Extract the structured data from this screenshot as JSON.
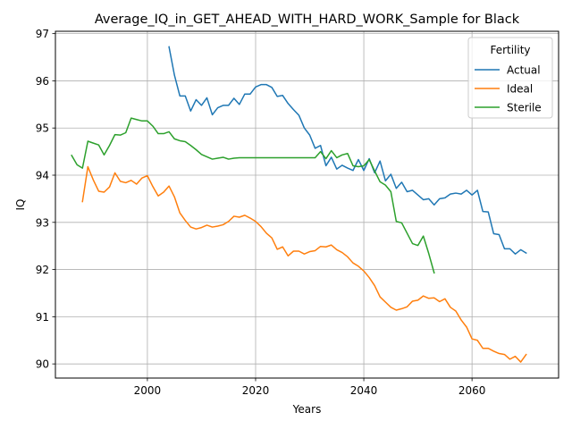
{
  "chart_data": {
    "type": "line",
    "title": "Average_IQ_in_GET_AHEAD_WITH_HARD_WORK_Sample for Black",
    "xlabel": "Years",
    "ylabel": "IQ",
    "xlim": [
      1983,
      2076
    ],
    "ylim": [
      89.7,
      97.05
    ],
    "xticks": [
      2000,
      2020,
      2040,
      2060
    ],
    "yticks": [
      90,
      91,
      92,
      93,
      94,
      95,
      96,
      97
    ],
    "grid": true,
    "legend": {
      "title": "Fertility",
      "position": "top-right"
    },
    "series": [
      {
        "name": "Actual",
        "color": "#1f77b4",
        "x": [
          2004,
          2005,
          2006,
          2007,
          2008,
          2009,
          2010,
          2011,
          2012,
          2013,
          2014,
          2015,
          2016,
          2017,
          2018,
          2019,
          2020,
          2021,
          2022,
          2023,
          2024,
          2025,
          2026,
          2027,
          2028,
          2029,
          2030,
          2031,
          2032,
          2033,
          2034,
          2035,
          2036,
          2037,
          2038,
          2039,
          2040,
          2041,
          2042,
          2043,
          2044,
          2045,
          2046,
          2047,
          2048,
          2049,
          2050,
          2051,
          2052,
          2053,
          2054,
          2055,
          2056,
          2057,
          2058,
          2059,
          2060,
          2061,
          2062,
          2063,
          2064,
          2065,
          2066,
          2067,
          2068,
          2069,
          2070
        ],
        "y": [
          96.72,
          96.12,
          95.68,
          95.68,
          95.36,
          95.6,
          95.48,
          95.64,
          95.28,
          95.43,
          95.48,
          95.48,
          95.63,
          95.5,
          95.72,
          95.72,
          95.87,
          95.92,
          95.92,
          95.86,
          95.67,
          95.69,
          95.52,
          95.39,
          95.27,
          95.0,
          94.85,
          94.57,
          94.63,
          94.2,
          94.38,
          94.13,
          94.21,
          94.15,
          94.1,
          94.33,
          94.1,
          94.35,
          94.05,
          94.3,
          93.88,
          94.02,
          93.72,
          93.85,
          93.65,
          93.68,
          93.58,
          93.48,
          93.5,
          93.37,
          93.5,
          93.52,
          93.6,
          93.62,
          93.6,
          93.68,
          93.58,
          93.68,
          93.23,
          93.22,
          92.76,
          92.74,
          92.44,
          92.44,
          92.33,
          92.42,
          92.35
        ]
      },
      {
        "name": "Ideal",
        "color": "#ff7f0e",
        "x": [
          1988,
          1989,
          1990,
          1991,
          1992,
          1993,
          1994,
          1995,
          1996,
          1997,
          1998,
          1999,
          2000,
          2001,
          2002,
          2003,
          2004,
          2005,
          2006,
          2007,
          2008,
          2009,
          2010,
          2011,
          2012,
          2013,
          2014,
          2015,
          2016,
          2017,
          2018,
          2019,
          2020,
          2021,
          2022,
          2023,
          2024,
          2025,
          2026,
          2027,
          2028,
          2029,
          2030,
          2031,
          2032,
          2033,
          2034,
          2035,
          2036,
          2037,
          2038,
          2039,
          2040,
          2041,
          2042,
          2043,
          2044,
          2045,
          2046,
          2047,
          2048,
          2049,
          2050,
          2051,
          2052,
          2053,
          2054,
          2055,
          2056,
          2057,
          2058,
          2059,
          2060,
          2061,
          2062,
          2063,
          2064,
          2065,
          2066,
          2067,
          2068,
          2069,
          2070
        ],
        "y": [
          93.44,
          94.18,
          93.9,
          93.66,
          93.64,
          93.75,
          94.05,
          93.87,
          93.84,
          93.89,
          93.81,
          93.94,
          93.99,
          93.76,
          93.56,
          93.64,
          93.77,
          93.54,
          93.2,
          93.04,
          92.9,
          92.86,
          92.89,
          92.94,
          92.9,
          92.92,
          92.95,
          93.02,
          93.13,
          93.11,
          93.15,
          93.09,
          93.02,
          92.91,
          92.77,
          92.67,
          92.43,
          92.48,
          92.29,
          92.39,
          92.39,
          92.33,
          92.38,
          92.4,
          92.49,
          92.48,
          92.52,
          92.42,
          92.36,
          92.27,
          92.14,
          92.07,
          91.97,
          91.83,
          91.66,
          91.42,
          91.31,
          91.2,
          91.14,
          91.17,
          91.21,
          91.33,
          91.35,
          91.44,
          91.39,
          91.4,
          91.32,
          91.38,
          91.2,
          91.12,
          90.93,
          90.78,
          90.53,
          90.5,
          90.33,
          90.33,
          90.27,
          90.22,
          90.2,
          90.1,
          90.16,
          90.04,
          90.2
        ]
      },
      {
        "name": "Sterile",
        "color": "#2ca02c",
        "x": [
          1986,
          1987,
          1988,
          1989,
          1990,
          1991,
          1992,
          1993,
          1994,
          1995,
          1996,
          1997,
          1998,
          1999,
          2000,
          2001,
          2002,
          2003,
          2004,
          2005,
          2006,
          2007,
          2008,
          2009,
          2010,
          2011,
          2012,
          2013,
          2014,
          2015,
          2016,
          2017,
          2018,
          2019,
          2020,
          2021,
          2022,
          2023,
          2024,
          2025,
          2026,
          2027,
          2028,
          2029,
          2030,
          2031,
          2032,
          2033,
          2034,
          2035,
          2036,
          2037,
          2038,
          2039,
          2040,
          2041,
          2042,
          2043,
          2044,
          2045,
          2046,
          2047,
          2048,
          2049,
          2050,
          2051,
          2052,
          2053
        ],
        "y": [
          94.42,
          94.22,
          94.15,
          94.72,
          94.68,
          94.64,
          94.43,
          94.63,
          94.86,
          94.85,
          94.9,
          95.21,
          95.18,
          95.15,
          95.15,
          95.04,
          94.88,
          94.88,
          94.92,
          94.77,
          94.73,
          94.71,
          94.63,
          94.54,
          94.44,
          94.39,
          94.34,
          94.36,
          94.38,
          94.34,
          94.36,
          94.37,
          94.37,
          94.37,
          94.37,
          94.37,
          94.37,
          94.37,
          94.37,
          94.37,
          94.37,
          94.37,
          94.37,
          94.37,
          94.37,
          94.37,
          94.5,
          94.35,
          94.52,
          94.37,
          94.43,
          94.46,
          94.2,
          94.18,
          94.2,
          94.33,
          94.09,
          93.86,
          93.79,
          93.65,
          93.02,
          92.99,
          92.77,
          92.55,
          92.51,
          92.71,
          92.34,
          91.93
        ]
      }
    ]
  }
}
